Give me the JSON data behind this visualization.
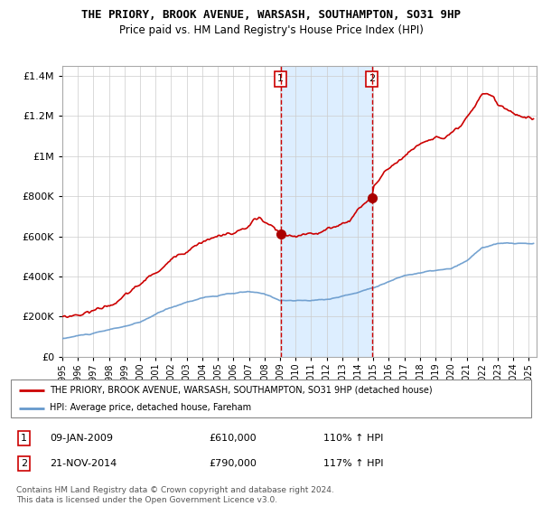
{
  "title": "THE PRIORY, BROOK AVENUE, WARSASH, SOUTHAMPTON, SO31 9HP",
  "subtitle": "Price paid vs. HM Land Registry's House Price Index (HPI)",
  "legend_line1": "THE PRIORY, BROOK AVENUE, WARSASH, SOUTHAMPTON, SO31 9HP (detached house)",
  "legend_line2": "HPI: Average price, detached house, Fareham",
  "transaction1_date": "09-JAN-2009",
  "transaction1_price": 610000,
  "transaction1_hpi": "110% ↑ HPI",
  "transaction2_date": "21-NOV-2014",
  "transaction2_price": 790000,
  "transaction2_hpi": "117% ↑ HPI",
  "copyright": "Contains HM Land Registry data © Crown copyright and database right 2024.\nThis data is licensed under the Open Government Licence v3.0.",
  "ylim": [
    0,
    1450000
  ],
  "xmin": 1995.0,
  "xmax": 2025.5,
  "red_color": "#cc0000",
  "blue_color": "#6699cc",
  "shade_color": "#ddeeff",
  "transaction1_x": 2009.03,
  "transaction2_x": 2014.9,
  "dot_color": "#aa0000",
  "hpi_anchors_x": [
    1995,
    1996,
    1997,
    1998,
    1999,
    2000,
    2001,
    2002,
    2003,
    2004,
    2005,
    2006,
    2007,
    2008,
    2009,
    2010,
    2011,
    2012,
    2013,
    2014,
    2015,
    2016,
    2017,
    2018,
    2019,
    2020,
    2021,
    2022,
    2023,
    2024,
    2025.3
  ],
  "hpi_anchors_y": [
    90000,
    105000,
    115000,
    130000,
    148000,
    165000,
    205000,
    238000,
    265000,
    290000,
    300000,
    308000,
    315000,
    300000,
    272000,
    270000,
    268000,
    275000,
    292000,
    310000,
    338000,
    368000,
    398000,
    412000,
    422000,
    428000,
    462000,
    530000,
    548000,
    548000,
    545000
  ],
  "red_anchors_x": [
    1995,
    1996,
    1997,
    1998,
    1999,
    2000,
    2001,
    2002,
    2003,
    2003.5,
    2004,
    2004.5,
    2005,
    2005.5,
    2006,
    2006.5,
    2007,
    2007.3,
    2007.7,
    2008,
    2008.5,
    2009.03,
    2009.5,
    2010,
    2010.5,
    2011,
    2011.5,
    2012,
    2012.5,
    2013,
    2013.5,
    2014,
    2014.9,
    2015,
    2015.5,
    2016,
    2016.5,
    2017,
    2017.5,
    2018,
    2018.5,
    2019,
    2019.5,
    2020,
    2020.5,
    2021,
    2021.5,
    2022,
    2022.3,
    2022.7,
    2023,
    2023.3,
    2023.7,
    2024,
    2024.5,
    2025.3
  ],
  "red_anchors_y": [
    200000,
    215000,
    238000,
    268000,
    310000,
    365000,
    420000,
    480000,
    540000,
    570000,
    600000,
    610000,
    620000,
    630000,
    635000,
    645000,
    660000,
    690000,
    700000,
    670000,
    645000,
    610000,
    590000,
    575000,
    590000,
    600000,
    610000,
    620000,
    635000,
    650000,
    670000,
    730000,
    790000,
    850000,
    890000,
    930000,
    970000,
    1000000,
    1030000,
    1060000,
    1080000,
    1100000,
    1090000,
    1100000,
    1120000,
    1160000,
    1200000,
    1260000,
    1270000,
    1260000,
    1215000,
    1200000,
    1185000,
    1165000,
    1155000,
    1150000
  ]
}
